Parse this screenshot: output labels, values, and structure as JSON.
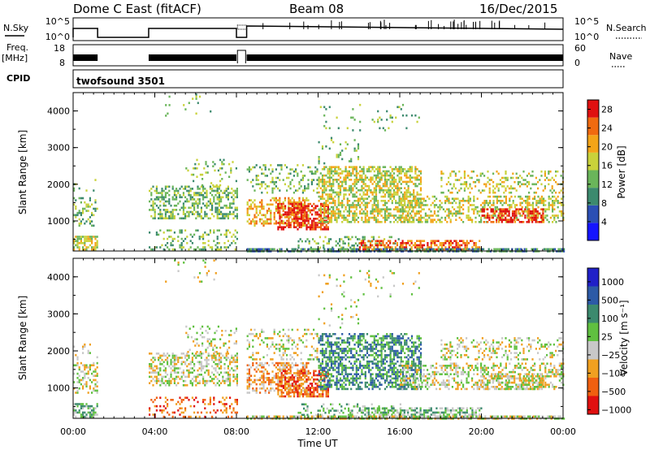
{
  "header": {
    "radar": "Dome C East (fitACF)",
    "beam": "Beam 08",
    "date": "16/Dec/2015"
  },
  "scan_params": {
    "nsky_label": "N.Sky",
    "nsky_ticks": [
      "10^5",
      "10^0"
    ],
    "nsearch_label": "N.Search",
    "nsearch_ticks": [
      "10^5",
      "10^0"
    ],
    "freq_label": "Freq.",
    "freq_unit": "[MHz]",
    "freq_ticks": [
      "18",
      "8"
    ],
    "nave_label": "Nave",
    "nave_ticks": [
      "60",
      "0"
    ],
    "cpid_label": "CPID",
    "cpid_value": "twofsound 3501"
  },
  "chart_data": [
    {
      "type": "heatmap",
      "title": "",
      "ylabel": "Slant Range [km]",
      "xlabel": "",
      "ylim": [
        180,
        4500
      ],
      "yticks": [
        "1000",
        "2000",
        "3000",
        "4000"
      ],
      "colorbar": {
        "label": "Power [dB]",
        "ticks": [
          "4",
          "8",
          "12",
          "16",
          "20",
          "24",
          "28"
        ],
        "range": [
          0,
          30
        ],
        "colors": [
          "#1515ff",
          "#2b4fb4",
          "#3c8a6e",
          "#6ab55a",
          "#c9d23a",
          "#f3a418",
          "#f06a10",
          "#e01010"
        ]
      },
      "data_coverage_hours": [
        [
          0.0,
          1.2
        ],
        [
          3.7,
          8.0
        ],
        [
          8.5,
          24.0
        ]
      ]
    },
    {
      "type": "heatmap",
      "title": "",
      "ylabel": "Slant Range [km]",
      "xlabel": "Time UT",
      "ylim": [
        180,
        4500
      ],
      "yticks": [
        "1000",
        "2000",
        "3000",
        "4000"
      ],
      "xticks": [
        "00:00",
        "04:00",
        "08:00",
        "12:00",
        "16:00",
        "20:00",
        "00:00"
      ],
      "colorbar": {
        "label": "Velocity [m s⁻¹]",
        "ticks": [
          "1000",
          "500",
          "100",
          "25",
          "−25",
          "−100",
          "−500",
          "−1000"
        ],
        "colors": [
          "#2020c8",
          "#2c5aa6",
          "#3c8a6e",
          "#60c040",
          "#c8c8c8",
          "#f0a020",
          "#f06010",
          "#e01010"
        ]
      },
      "data_coverage_hours": [
        [
          0.0,
          1.2
        ],
        [
          3.7,
          8.0
        ],
        [
          8.5,
          24.0
        ]
      ]
    }
  ]
}
